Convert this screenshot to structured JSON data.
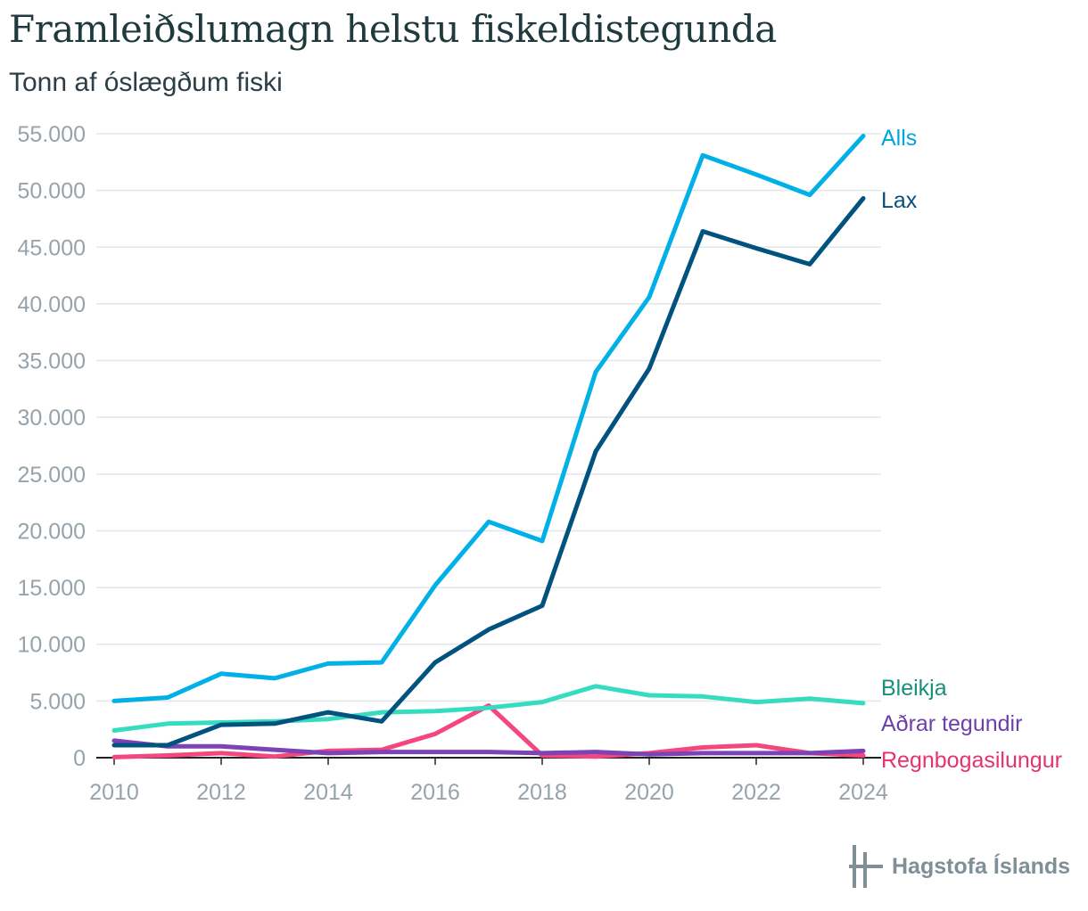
{
  "title": "Framleiðslumagn helstu fiskeldistegunda",
  "subtitle": "Tonn af óslægðum fiski",
  "logo_text": "Hagstofa Íslands",
  "chart_data": {
    "type": "line",
    "title": "Framleiðslumagn helstu fiskeldistegunda",
    "subtitle": "Tonn af óslægðum fiski",
    "xlabel": "",
    "ylabel": "",
    "x": [
      2010,
      2011,
      2012,
      2013,
      2014,
      2015,
      2016,
      2017,
      2018,
      2019,
      2020,
      2021,
      2022,
      2023,
      2024
    ],
    "x_ticks": [
      "2010",
      "2012",
      "2014",
      "2016",
      "2018",
      "2020",
      "2022",
      "2024"
    ],
    "y_ticks": [
      "0",
      "5.000",
      "10.000",
      "15.000",
      "20.000",
      "25.000",
      "30.000",
      "35.000",
      "40.000",
      "45.000",
      "50.000",
      "55.000"
    ],
    "ylim": [
      0,
      55000
    ],
    "grid": true,
    "legend": "direct labels at right end of lines",
    "series": [
      {
        "name": "Alls",
        "color": "#00b0e6",
        "values": [
          5000,
          5300,
          7400,
          7000,
          8300,
          8400,
          15200,
          20800,
          19100,
          34000,
          40600,
          53100,
          51400,
          49600,
          54800
        ]
      },
      {
        "name": "Lax",
        "color": "#00527f",
        "values": [
          1100,
          1100,
          2900,
          3000,
          4000,
          3200,
          8400,
          11300,
          13400,
          27000,
          34300,
          46400,
          44900,
          43500,
          49300
        ]
      },
      {
        "name": "Bleikja",
        "color": "#36dcc0",
        "values": [
          2400,
          3000,
          3100,
          3200,
          3400,
          4000,
          4100,
          4400,
          4900,
          6300,
          5500,
          5400,
          4900,
          5200,
          4800
        ]
      },
      {
        "name": "Aðrar tegundir",
        "color": "#7b43b5",
        "values": [
          1500,
          1000,
          1000,
          700,
          400,
          500,
          500,
          500,
          400,
          500,
          300,
          400,
          400,
          400,
          600
        ]
      },
      {
        "name": "Regnbogasilungur",
        "color": "#f5477f",
        "values": [
          50,
          200,
          400,
          100,
          600,
          700,
          2100,
          4600,
          200,
          100,
          400,
          900,
          1100,
          400,
          200
        ]
      }
    ],
    "label_colors": {
      "Alls": "#00a5dc",
      "Lax": "#0a4f7a",
      "Bleikja": "#17917a",
      "Aðrar tegundir": "#6c3fad",
      "Regnbogasilungur": "#e6326d"
    }
  }
}
